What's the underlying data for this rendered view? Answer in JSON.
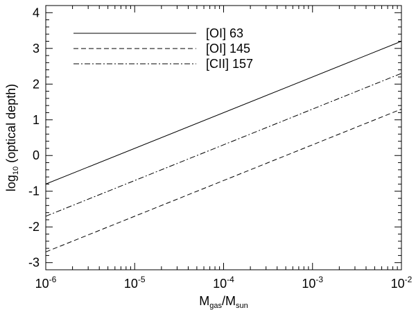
{
  "chart_data": {
    "type": "line",
    "xlabel": {
      "main": "M",
      "sub": "gas",
      "sep": "/M",
      "sub2": "sun"
    },
    "ylabel": {
      "pre": "log",
      "sub": "10",
      "post": " (optical depth)"
    },
    "x_scale": "log",
    "x_range": [
      1e-06,
      0.01
    ],
    "y_range": [
      -3.2,
      4.2
    ],
    "x_ticks": [
      {
        "value": 1e-06,
        "base": "10",
        "exp": "-6"
      },
      {
        "value": 1e-05,
        "base": "10",
        "exp": "-5"
      },
      {
        "value": 0.0001,
        "base": "10",
        "exp": "-4"
      },
      {
        "value": 0.001,
        "base": "10",
        "exp": "-3"
      },
      {
        "value": 0.01,
        "base": "10",
        "exp": "-2"
      }
    ],
    "y_ticks": [
      -3,
      -2,
      -1,
      0,
      1,
      2,
      3,
      4
    ],
    "legend_position": "top-left",
    "series": [
      {
        "name": "[OI] 63",
        "style": "solid",
        "color": "#000000",
        "x": [
          1e-06,
          0.01
        ],
        "y": [
          -0.8,
          3.2
        ]
      },
      {
        "name": "[OI] 145",
        "style": "dashed",
        "color": "#000000",
        "x": [
          1e-06,
          0.01
        ],
        "y": [
          -2.7,
          1.3
        ]
      },
      {
        "name": "[CII] 157",
        "style": "dashdot",
        "color": "#000000",
        "x": [
          1e-06,
          0.01
        ],
        "y": [
          -1.7,
          2.3
        ]
      }
    ]
  }
}
